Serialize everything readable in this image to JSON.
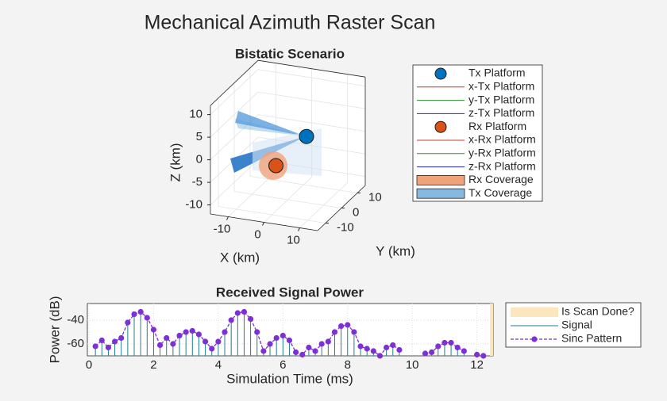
{
  "title": "Mechanical Azimuth Raster Scan",
  "chart_data": [
    {
      "type": "scatter3d",
      "title": "Bistatic Scenario",
      "xlabel": "X (km)",
      "ylabel": "Y (km)",
      "zlabel": "Z (km)",
      "xlim": [
        -15,
        15
      ],
      "ylim": [
        -15,
        15
      ],
      "zlim": [
        -12,
        12
      ],
      "xticks": [
        -10,
        0,
        10
      ],
      "yticks": [
        -10,
        0,
        10
      ],
      "zticks": [
        -10,
        -5,
        0,
        5,
        10
      ],
      "grid": true,
      "series": [
        {
          "name": "Tx Platform",
          "kind": "marker",
          "color": "#0072bd",
          "x": [
            3
          ],
          "y": [
            5
          ],
          "z": [
            0.7
          ]
        },
        {
          "name": "x-Tx Platform",
          "kind": "line",
          "color": "#c0392b"
        },
        {
          "name": "y-Tx Platform",
          "kind": "line",
          "color": "#2e8b2e"
        },
        {
          "name": "z-Tx Platform",
          "kind": "line",
          "color": "#2a2a9a"
        },
        {
          "name": "Rx Platform",
          "kind": "marker",
          "color": "#d95319",
          "x": [
            -2
          ],
          "y": [
            -3
          ],
          "z": [
            -3.7
          ]
        },
        {
          "name": "x-Rx Platform",
          "kind": "line",
          "color": "#c0392b"
        },
        {
          "name": "y-Rx Platform",
          "kind": "line",
          "color": "#2e8b2e"
        },
        {
          "name": "z-Rx Platform",
          "kind": "line",
          "color": "#2a2a9a"
        },
        {
          "name": "Rx Coverage",
          "kind": "patch",
          "color": "#f0a27a"
        },
        {
          "name": "Tx Coverage",
          "kind": "patch",
          "color": "#86b8e0"
        }
      ]
    },
    {
      "type": "line",
      "title": "Received Signal Power",
      "xlabel": "Simulation Time (ms)",
      "ylabel": "Power (dB)",
      "xlim": [
        0,
        12.5
      ],
      "ylim": [
        -70,
        -26
      ],
      "xticks": [
        0,
        2,
        4,
        6,
        8,
        10,
        12
      ],
      "yticks": [
        -60,
        -40
      ],
      "grid": true,
      "x": [
        0.2,
        0.4,
        0.6,
        0.8,
        1.0,
        1.2,
        1.4,
        1.6,
        1.8,
        2.0,
        2.2,
        2.4,
        2.6,
        2.8,
        3.0,
        3.2,
        3.4,
        3.6,
        3.8,
        4.0,
        4.2,
        4.4,
        4.6,
        4.8,
        5.0,
        5.2,
        5.4,
        5.6,
        5.8,
        6.0,
        6.2,
        6.4,
        6.6,
        6.8,
        7.0,
        7.2,
        7.4,
        7.6,
        7.8,
        8.0,
        8.2,
        8.4,
        8.6,
        8.8,
        9.0,
        9.2,
        9.4,
        9.6,
        9.8,
        10.0,
        10.2,
        10.4,
        10.6,
        10.8,
        11.0,
        11.2,
        11.4,
        11.6,
        11.8,
        12.0,
        12.2
      ],
      "series": [
        {
          "name": "Is Scan Done?",
          "kind": "band",
          "color": "#fce6bd",
          "x_range": [
            12.4,
            12.5
          ]
        },
        {
          "name": "Signal",
          "kind": "stem",
          "color": "#1f7f8f",
          "values": [
            -64,
            -59,
            -65,
            -60,
            -57,
            -44,
            -37,
            -35,
            -40,
            -50,
            -63,
            -57,
            -62,
            -55,
            -52,
            -51,
            -54,
            -60,
            -66,
            -60,
            -52,
            -42,
            -36,
            -35,
            -41,
            -52,
            -68,
            -62,
            -57,
            -55,
            -59,
            -69,
            -70,
            -65,
            -68,
            -62,
            -60,
            -52,
            -47,
            -46,
            -52,
            -64,
            -66,
            -68,
            -70,
            -65,
            -63,
            -67,
            null,
            null,
            null,
            -70,
            -69,
            -64,
            -61,
            -61,
            -65,
            -68,
            null,
            -70,
            -70
          ]
        },
        {
          "name": "Sinc Pattern",
          "kind": "marker-line",
          "color": "#7e2fd6",
          "values": [
            -62,
            -57,
            -63,
            -58,
            -55,
            -42,
            -35,
            -33,
            -38,
            -48,
            -61,
            -55,
            -60,
            -53,
            -50,
            -49,
            -52,
            -58,
            -64,
            -58,
            -50,
            -40,
            -34,
            -33,
            -39,
            -50,
            -66,
            -60,
            -55,
            -53,
            -57,
            -67,
            -69,
            -63,
            -66,
            -60,
            -58,
            -50,
            -45,
            -44,
            -50,
            -62,
            -64,
            -66,
            -70,
            -63,
            -61,
            -65,
            null,
            null,
            null,
            -68,
            -67,
            -62,
            -59,
            -59,
            -63,
            -66,
            null,
            -69,
            -70
          ]
        }
      ]
    }
  ]
}
